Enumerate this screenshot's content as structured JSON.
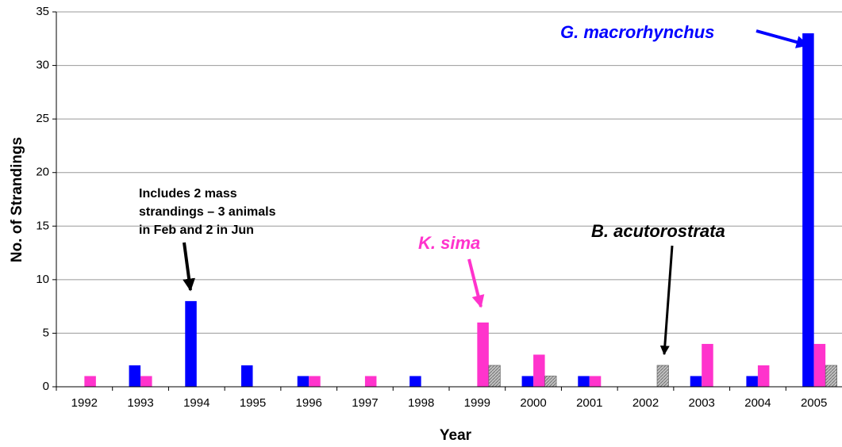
{
  "chart_data": {
    "type": "bar",
    "x_label": "Year",
    "y_label": "No. of Strandings",
    "categories": [
      "1992",
      "1993",
      "1994",
      "1995",
      "1996",
      "1997",
      "1998",
      "1999",
      "2000",
      "2001",
      "2002",
      "2003",
      "2004",
      "2005"
    ],
    "series": [
      {
        "name": "G. macrorhynchus",
        "color": "#0000ff",
        "values": [
          0,
          2,
          8,
          2,
          1,
          0,
          1,
          0,
          1,
          1,
          0,
          1,
          1,
          33
        ]
      },
      {
        "name": "K. sima",
        "color": "#ff33cc",
        "values": [
          1,
          1,
          0,
          0,
          1,
          1,
          0,
          6,
          3,
          1,
          0,
          4,
          2,
          4
        ]
      },
      {
        "name": "B. acutorostrata",
        "color": "#c0c0c0",
        "values": [
          0,
          0,
          0,
          0,
          0,
          0,
          0,
          2,
          1,
          0,
          2,
          0,
          0,
          2
        ]
      }
    ],
    "annotation": [
      "Includes 2 mass",
      "strandings – 3 animals",
      "in Feb and 2 in Jun"
    ],
    "ylim": [
      0,
      35
    ],
    "yticks": [
      0,
      5,
      10,
      15,
      20,
      25,
      30,
      35
    ],
    "grid": true
  }
}
